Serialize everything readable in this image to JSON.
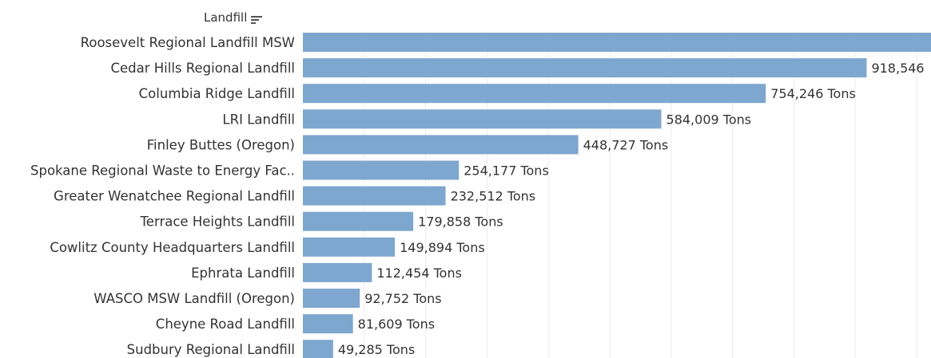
{
  "header": {
    "field_label": "Landfill",
    "sort_icon": "sort-descending-icon"
  },
  "chart_data": {
    "type": "bar",
    "orientation": "horizontal",
    "categories": [
      "Roosevelt Regional Landfill MSW",
      "Cedar Hills Regional Landfill",
      "Columbia Ridge Landfill",
      "LRI Landfill",
      "Finley Buttes (Oregon)",
      "Spokane Regional Waste to Energy Fac..",
      "Greater Wenatchee Regional Landfill",
      "Terrace Heights Landfill",
      "Cowlitz County Headquarters Landfill",
      "Ephrata Landfill",
      "WASCO MSW Landfill (Oregon)",
      "Cheyne Road Landfill",
      "Sudbury Regional Landfill"
    ],
    "values": [
      1050000,
      918546,
      754246,
      584009,
      448727,
      254177,
      232512,
      179858,
      149894,
      112454,
      92752,
      81609,
      49285
    ],
    "data_labels": [
      "",
      "918,546",
      "754,246 Tons",
      "584,009 Tons",
      "448,727 Tons",
      "254,177 Tons",
      "232,512 Tons",
      "179,858 Tons",
      "149,894 Tons",
      "112,454 Tons",
      "92,752 Tons",
      "81,609 Tons",
      "49,285 Tons"
    ],
    "xlim": [
      0,
      1000000
    ],
    "gridlines": [
      100000,
      200000,
      300000,
      400000,
      500000,
      600000,
      700000,
      800000,
      900000,
      1000000
    ],
    "grid": true,
    "bar_color": "#7ea7cf",
    "grid_color": "#ececec",
    "label_color": "#333333"
  }
}
